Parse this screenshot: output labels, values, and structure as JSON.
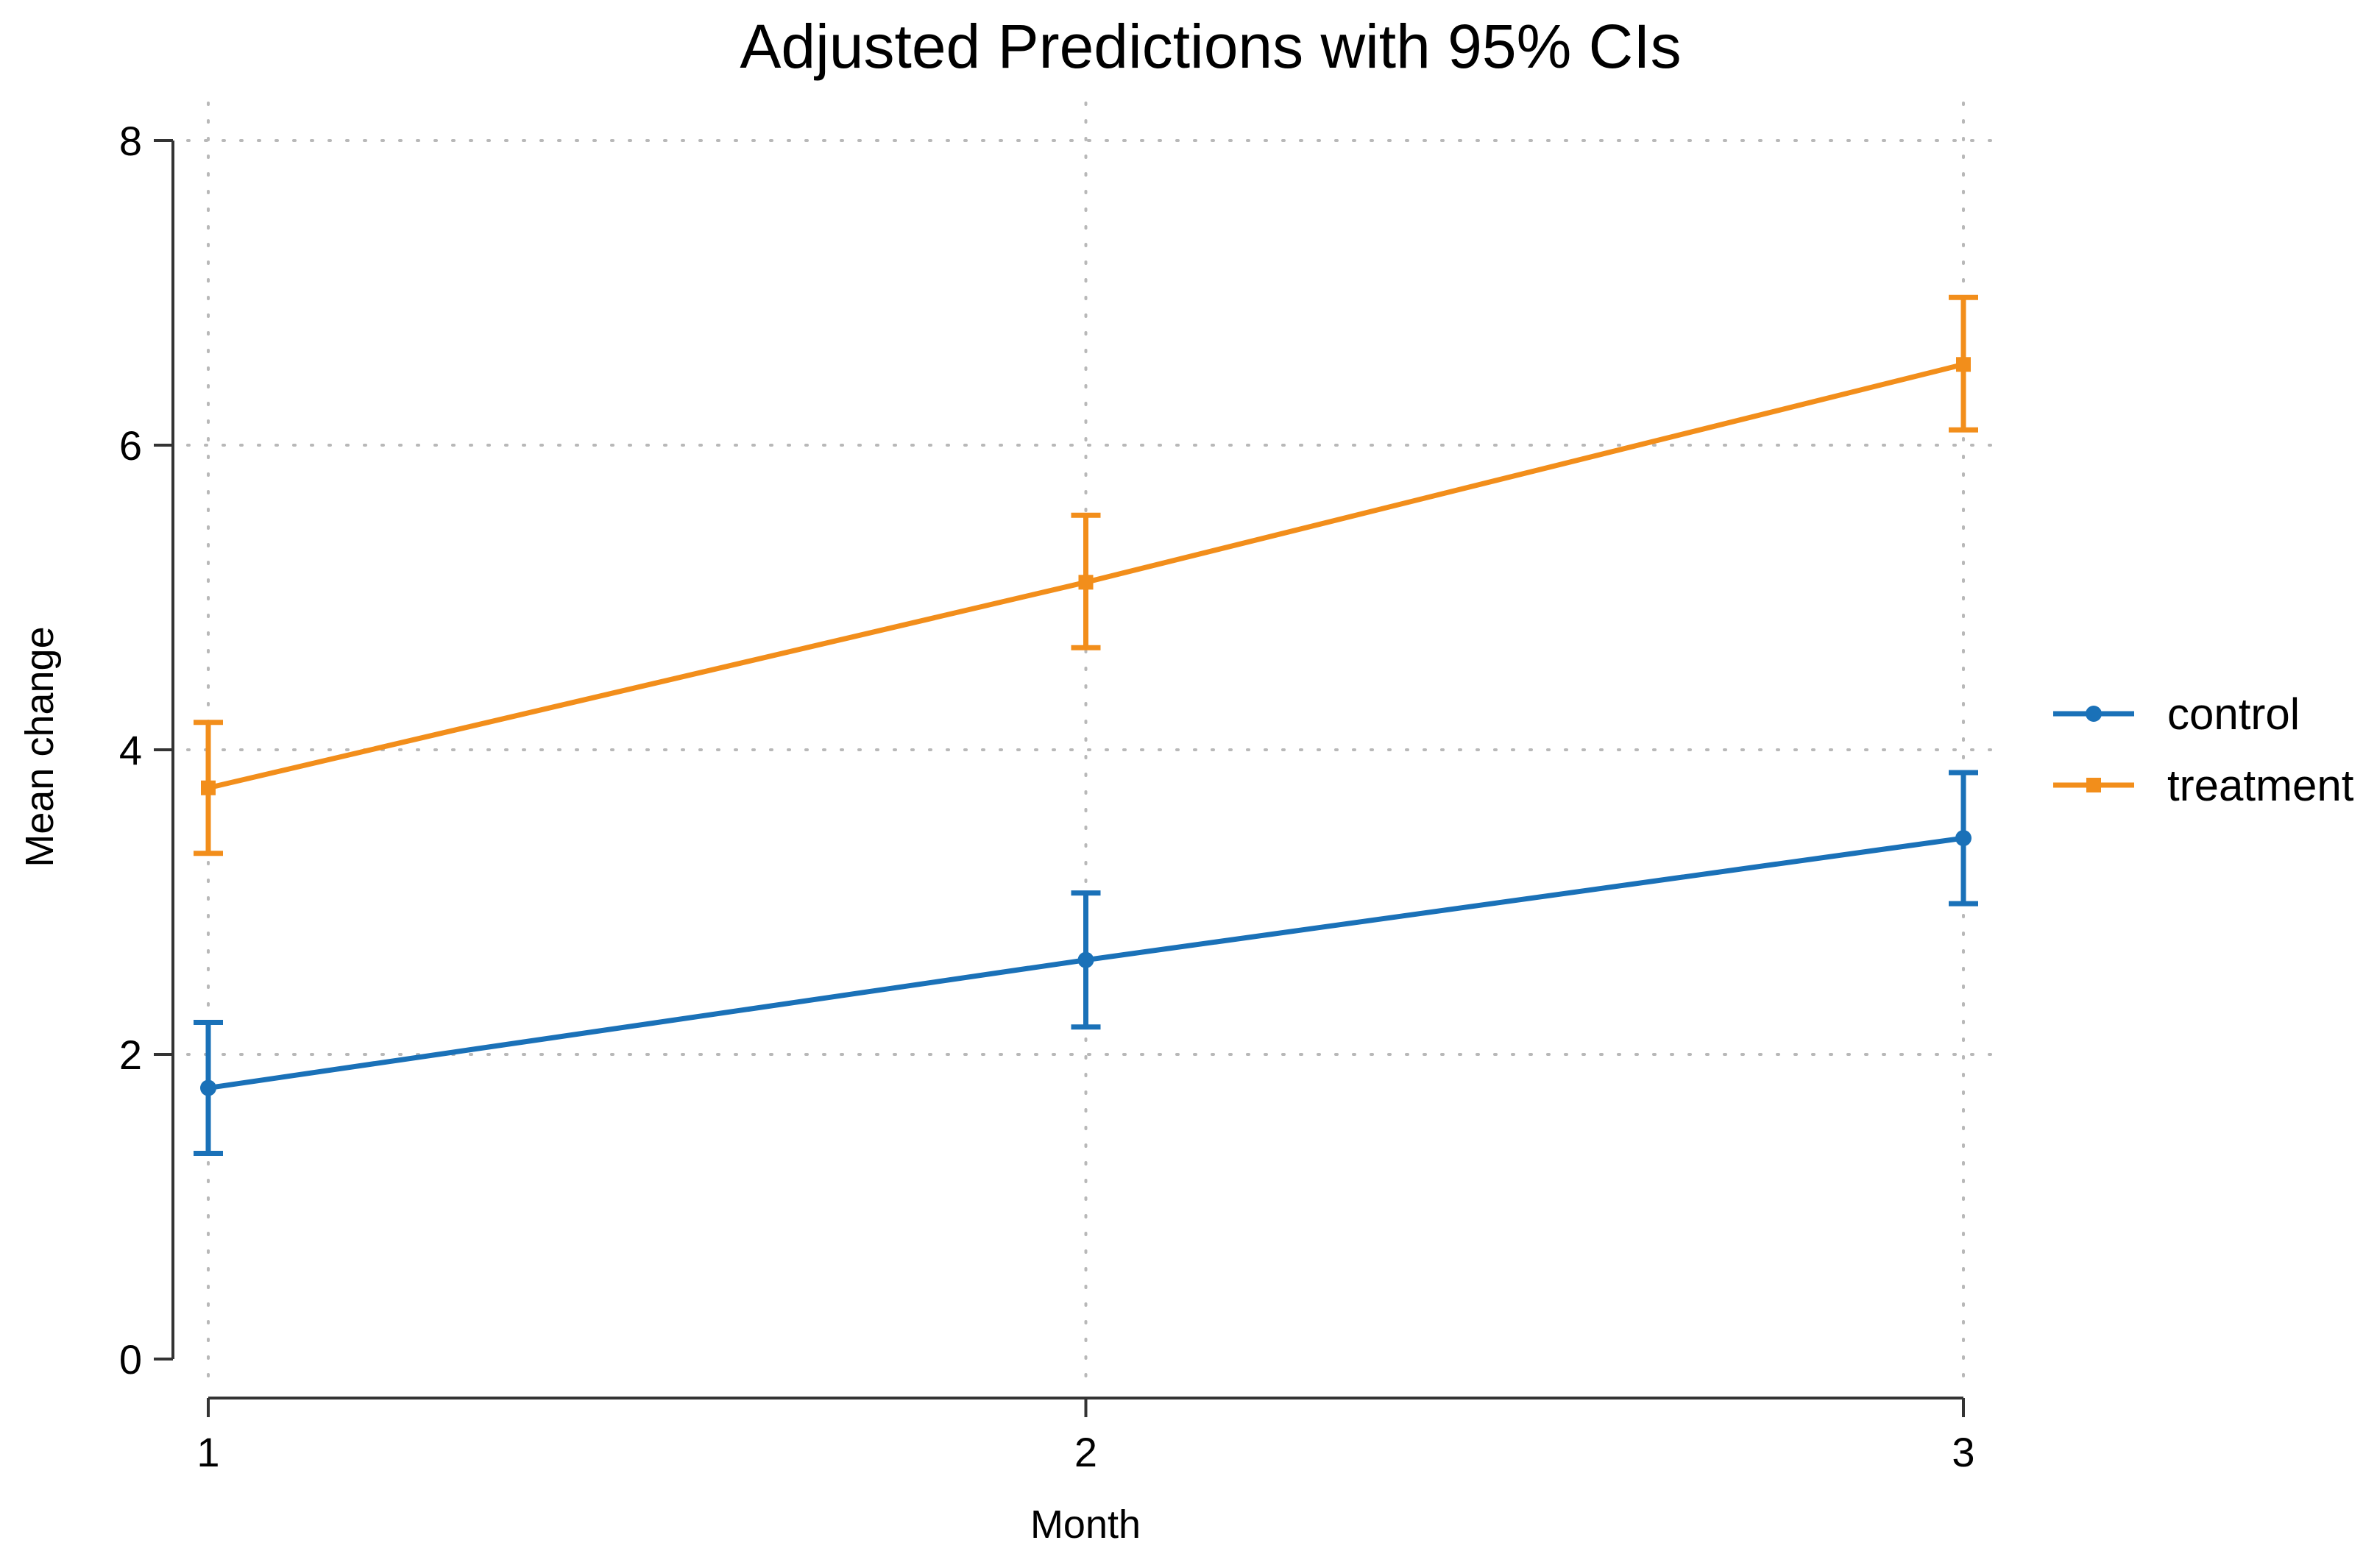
{
  "chart_data": {
    "type": "line",
    "title": "Adjusted Predictions with 95% CIs",
    "xlabel": "Month",
    "ylabel": "Mean change",
    "x": [
      1,
      2,
      3
    ],
    "x_tick_labels": [
      "1",
      "2",
      "3"
    ],
    "y_ticks": [
      0,
      2,
      4,
      6,
      8
    ],
    "y_tick_labels": [
      "0",
      "2",
      "4",
      "6",
      "8"
    ],
    "xlim": [
      1,
      3
    ],
    "ylim": [
      0,
      8
    ],
    "grid": true,
    "legend_position": "right",
    "series": [
      {
        "name": "control",
        "color": "#1a71b8",
        "values": [
          1.78,
          2.62,
          3.42
        ],
        "ci_lower": [
          1.35,
          2.18,
          2.99
        ],
        "ci_upper": [
          2.21,
          3.06,
          3.85
        ]
      },
      {
        "name": "treatment",
        "color": "#f28e1b",
        "values": [
          3.75,
          5.1,
          6.53
        ],
        "ci_lower": [
          3.32,
          4.67,
          6.1
        ],
        "ci_upper": [
          4.18,
          5.54,
          6.97
        ]
      }
    ]
  }
}
